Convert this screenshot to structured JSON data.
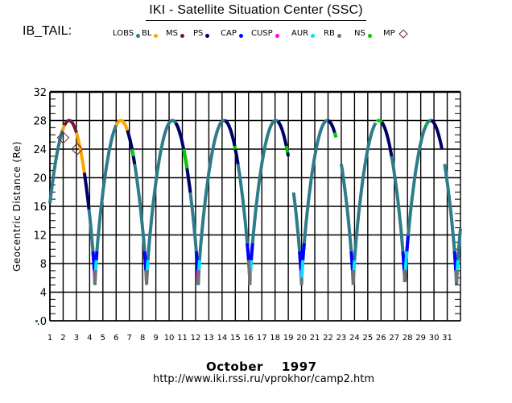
{
  "header": {
    "title": "IKI - Satellite Situation Center (SSC)",
    "plot_name": "IB_TAIL:"
  },
  "footer": {
    "month": "October",
    "year": "1997",
    "url": "http://www.iki.rssi.ru/vprokhor/camp2.htm"
  },
  "chart_data": {
    "type": "line",
    "title": "IKI - Satellite Situation Center (SSC)",
    "xlabel": "October 1997",
    "ylabel": "Geocentric Distance (Re)",
    "xlim": [
      1,
      32
    ],
    "ylim": [
      0,
      32
    ],
    "x_ticks": [
      1,
      2,
      3,
      4,
      5,
      6,
      7,
      8,
      9,
      10,
      11,
      12,
      13,
      14,
      15,
      16,
      17,
      18,
      19,
      20,
      21,
      22,
      23,
      24,
      25,
      26,
      27,
      28,
      29,
      30,
      31
    ],
    "y_ticks": [
      0,
      4,
      8,
      12,
      16,
      20,
      24,
      28,
      32
    ],
    "y_tick_labels": [
      ".0",
      "4",
      "8",
      "12",
      "16",
      "20",
      "24",
      "28",
      "32"
    ],
    "grid": true,
    "legend": [
      {
        "name": "LOBS",
        "color": "#2e7b8c",
        "marker": "dot"
      },
      {
        "name": "BL",
        "color": "#ffa500",
        "marker": "dot"
      },
      {
        "name": "MS",
        "color": "#6b1c2e",
        "marker": "dot"
      },
      {
        "name": "PS",
        "color": "#000066",
        "marker": "dot"
      },
      {
        "name": "CAP",
        "color": "#0000ff",
        "marker": "dot"
      },
      {
        "name": "CUSP",
        "color": "#ff00ff",
        "marker": "dot"
      },
      {
        "name": "AUR",
        "color": "#00e5ff",
        "marker": "dot"
      },
      {
        "name": "RB",
        "color": "#737373",
        "marker": "dot"
      },
      {
        "name": "NS",
        "color": "#00cc00",
        "marker": "dot"
      },
      {
        "name": "MP",
        "color": "#6b1c2e",
        "marker": "diamond"
      }
    ],
    "legend_position": "top",
    "orbit": {
      "perigee_re": 5.0,
      "apogee_re": 28.0,
      "perigee_days": [
        4.4,
        8.3,
        12.2,
        16.1,
        20.0,
        23.9,
        27.8,
        31.7
      ],
      "apogee_days": [
        2.5,
        6.4,
        10.3,
        14.2,
        18.1,
        22.0,
        25.9,
        29.8
      ]
    },
    "series": [
      {
        "name": "LOBS",
        "color": "#2e7b8c",
        "segments": [
          [
            1.0,
            1.95
          ],
          [
            3.95,
            6.0
          ],
          [
            6.85,
            10.9
          ],
          [
            11.3,
            14.7
          ],
          [
            15.0,
            18.5
          ],
          [
            19.4,
            22.4
          ],
          [
            23.0,
            25.6
          ],
          [
            26.7,
            29.85
          ],
          [
            30.8,
            32.0
          ]
        ]
      },
      {
        "name": "BL",
        "color": "#ffa500",
        "segments": [
          [
            1.95,
            2.1
          ],
          [
            3.0,
            3.6
          ],
          [
            6.0,
            6.85
          ]
        ]
      },
      {
        "name": "MS",
        "color": "#6b1c2e",
        "segments": [
          [
            2.1,
            3.0
          ]
        ]
      },
      {
        "name": "PS",
        "color": "#000066",
        "segments": [
          [
            3.6,
            3.95
          ],
          [
            6.85,
            7.4
          ],
          [
            10.5,
            11.6
          ],
          [
            14.2,
            15.2
          ],
          [
            18.2,
            19.0
          ],
          [
            22.0,
            22.6
          ],
          [
            25.95,
            26.8
          ],
          [
            29.8,
            30.6
          ]
        ]
      },
      {
        "name": "CAP",
        "color": "#0000ff",
        "segments": [
          [
            4.25,
            4.35
          ],
          [
            4.5,
            4.55
          ],
          [
            8.15,
            8.25
          ],
          [
            12.05,
            12.15
          ],
          [
            15.9,
            16.0
          ],
          [
            16.2,
            16.3
          ],
          [
            19.85,
            19.95
          ],
          [
            20.1,
            20.2
          ],
          [
            23.75,
            23.85
          ],
          [
            27.65,
            27.75
          ],
          [
            27.95,
            28.05
          ],
          [
            31.55,
            31.65
          ]
        ]
      },
      {
        "name": "CUSP",
        "color": "#ff00ff",
        "segments": [
          [
            4.35,
            4.38
          ],
          [
            12.15,
            12.18
          ],
          [
            19.95,
            19.98
          ]
        ]
      },
      {
        "name": "AUR",
        "color": "#00e5ff",
        "segments": [
          [
            4.45,
            4.5
          ],
          [
            8.35,
            8.4
          ],
          [
            12.25,
            12.3
          ],
          [
            16.1,
            16.2
          ],
          [
            20.0,
            20.1
          ],
          [
            23.95,
            24.0
          ],
          [
            27.85,
            27.95
          ],
          [
            31.75,
            31.8
          ]
        ]
      },
      {
        "name": "RB",
        "color": "#737373",
        "segments": [
          [
            4.38,
            4.45
          ],
          [
            8.25,
            8.35
          ],
          [
            12.18,
            12.25
          ],
          [
            16.0,
            16.1
          ],
          [
            19.98,
            20.0
          ],
          [
            23.85,
            23.95
          ],
          [
            27.75,
            27.85
          ],
          [
            31.65,
            31.75
          ]
        ]
      },
      {
        "name": "NS",
        "color": "#00cc00",
        "segments": [
          [
            7.2,
            7.3
          ],
          [
            11.1,
            11.35
          ],
          [
            14.95,
            15.0
          ],
          [
            18.85,
            18.95
          ],
          [
            22.5,
            22.6
          ],
          [
            25.7,
            26.05
          ],
          [
            29.4,
            29.5
          ]
        ]
      }
    ],
    "crossings": [
      {
        "name": "MP",
        "day": 2.0,
        "distance": 25.6
      },
      {
        "name": "MP",
        "day": 3.05,
        "distance": 24.0
      }
    ],
    "start_point": {
      "day": 0.9,
      "distance": 0.0
    }
  }
}
